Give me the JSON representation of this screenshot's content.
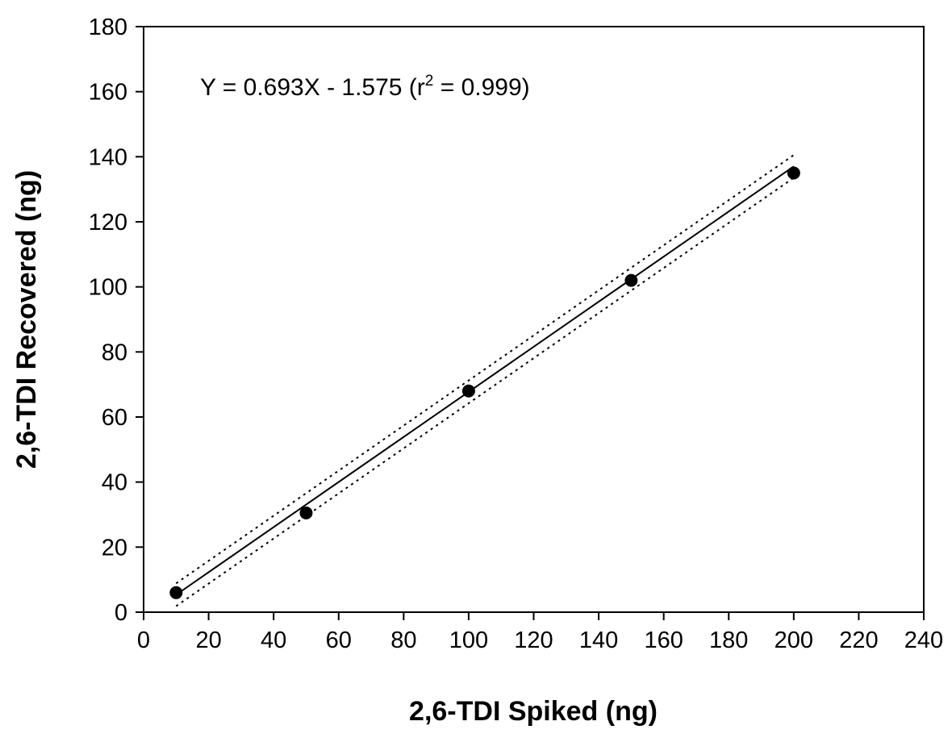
{
  "chart_data": {
    "type": "scatter",
    "title": "",
    "xlabel": "2,6-TDI Spiked (ng)",
    "ylabel": "2,6-TDI Recovered (ng)",
    "xlim": [
      0,
      240
    ],
    "ylim": [
      0,
      180
    ],
    "xticks": [
      0,
      20,
      40,
      60,
      80,
      100,
      120,
      140,
      160,
      180,
      200,
      220,
      240
    ],
    "yticks": [
      0,
      20,
      40,
      60,
      80,
      100,
      120,
      140,
      160,
      180
    ],
    "grid": false,
    "legend": "none",
    "points": [
      {
        "x": 10,
        "y": 6
      },
      {
        "x": 50,
        "y": 30.5
      },
      {
        "x": 100,
        "y": 68
      },
      {
        "x": 150,
        "y": 102
      },
      {
        "x": 200,
        "y": 135
      }
    ],
    "regression": {
      "slope": 0.693,
      "intercept": -1.575,
      "x_range": [
        10,
        200
      ]
    },
    "confidence_band": {
      "offset": 3.5
    },
    "annotation": {
      "prefix": "Y = 0.693X - 1.575 (r",
      "superscript": "2",
      "suffix": " = 0.999)"
    }
  }
}
